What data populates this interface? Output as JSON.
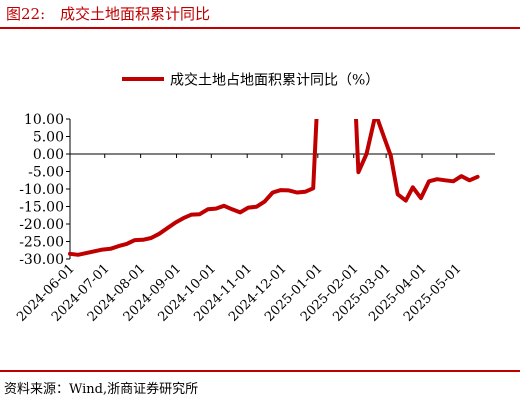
{
  "header": {
    "figure_label": "图22:",
    "figure_title": "成交土地面积累计同比"
  },
  "footer": {
    "source": "资料来源：Wind,浙商证券研究所"
  },
  "colors": {
    "brand": "#c00000",
    "series": "#c00000",
    "axis": "#000000"
  },
  "chart_data": {
    "type": "line",
    "title": "",
    "xlabel": "",
    "ylabel": "",
    "legend": {
      "placement": "top-center"
    },
    "grid": false,
    "ylim": [
      -30,
      10
    ],
    "yticks": [
      10,
      5,
      0,
      -5,
      -10,
      -15,
      -20,
      -25,
      -30
    ],
    "ytick_labels": [
      "10.00",
      "5.00",
      "0.00",
      "-5.00",
      "-10.00",
      "-15.00",
      "-20.00",
      "-25.00",
      "-30.00"
    ],
    "x_tick_labels": [
      "2024-06-01",
      "2024-07-01",
      "2024-08-01",
      "2024-09-01",
      "2024-10-01",
      "2024-11-01",
      "2024-12-01",
      "2025-01-01",
      "2025-02-01",
      "2025-03-01",
      "2025-04-01",
      "2025-05-01"
    ],
    "xlim": [
      "2024-06-01",
      "2025-06-03"
    ],
    "series": [
      {
        "name": "成交土地占地面积累计同比（%）",
        "color": "#c00000",
        "points": [
          {
            "x": "2024-06-01",
            "y": -28.5
          },
          {
            "x": "2024-06-08",
            "y": -28.8
          },
          {
            "x": "2024-06-15",
            "y": -28.3
          },
          {
            "x": "2024-06-22",
            "y": -27.8
          },
          {
            "x": "2024-06-29",
            "y": -27.3
          },
          {
            "x": "2024-07-06",
            "y": -27.1
          },
          {
            "x": "2024-07-13",
            "y": -26.3
          },
          {
            "x": "2024-07-20",
            "y": -25.7
          },
          {
            "x": "2024-07-27",
            "y": -24.6
          },
          {
            "x": "2024-08-03",
            "y": -24.5
          },
          {
            "x": "2024-08-10",
            "y": -24.0
          },
          {
            "x": "2024-08-17",
            "y": -22.8
          },
          {
            "x": "2024-08-24",
            "y": -21.2
          },
          {
            "x": "2024-08-31",
            "y": -19.6
          },
          {
            "x": "2024-09-07",
            "y": -18.3
          },
          {
            "x": "2024-09-14",
            "y": -17.3
          },
          {
            "x": "2024-09-21",
            "y": -17.2
          },
          {
            "x": "2024-09-28",
            "y": -15.8
          },
          {
            "x": "2024-10-05",
            "y": -15.6
          },
          {
            "x": "2024-10-12",
            "y": -14.8
          },
          {
            "x": "2024-10-19",
            "y": -15.8
          },
          {
            "x": "2024-10-26",
            "y": -16.7
          },
          {
            "x": "2024-11-02",
            "y": -15.3
          },
          {
            "x": "2024-11-09",
            "y": -15.1
          },
          {
            "x": "2024-11-16",
            "y": -13.6
          },
          {
            "x": "2024-11-23",
            "y": -11.0
          },
          {
            "x": "2024-11-30",
            "y": -10.3
          },
          {
            "x": "2024-12-07",
            "y": -10.4
          },
          {
            "x": "2024-12-14",
            "y": -11.0
          },
          {
            "x": "2024-12-21",
            "y": -10.8
          },
          {
            "x": "2024-12-28",
            "y": -9.8
          },
          {
            "x": "2025-01-02",
            "y": 25.0
          },
          {
            "x": "2025-02-01",
            "y": 25.0
          },
          {
            "x": "2025-02-05",
            "y": -5.2
          },
          {
            "x": "2025-02-12",
            "y": 0.0
          },
          {
            "x": "2025-02-20",
            "y": 11.5
          },
          {
            "x": "2025-02-27",
            "y": 5.0
          },
          {
            "x": "2025-03-05",
            "y": -0.5
          },
          {
            "x": "2025-03-11",
            "y": -11.5
          },
          {
            "x": "2025-03-18",
            "y": -13.3
          },
          {
            "x": "2025-03-24",
            "y": -9.5
          },
          {
            "x": "2025-03-31",
            "y": -12.6
          },
          {
            "x": "2025-04-07",
            "y": -7.8
          },
          {
            "x": "2025-04-14",
            "y": -7.2
          },
          {
            "x": "2025-04-21",
            "y": -7.5
          },
          {
            "x": "2025-04-28",
            "y": -7.8
          },
          {
            "x": "2025-05-05",
            "y": -6.3
          },
          {
            "x": "2025-05-12",
            "y": -7.5
          },
          {
            "x": "2025-05-19",
            "y": -6.5
          }
        ]
      }
    ]
  }
}
